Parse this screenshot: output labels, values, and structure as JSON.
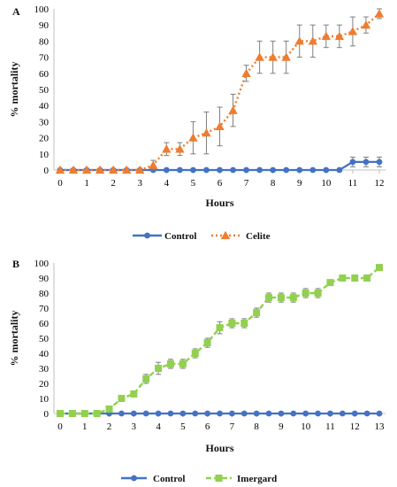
{
  "colors": {
    "control": "#4472C4",
    "celite": "#ED7D31",
    "imergard": "#92D050",
    "error": "#7f7f7f",
    "axis": "#bfbfbf"
  },
  "chart_data": [
    {
      "panel_label": "A",
      "type": "line",
      "xlabel": "Hours",
      "ylabel": "% mortality",
      "xlim": [
        0,
        12
      ],
      "ylim": [
        0,
        100
      ],
      "x_ticks": [
        "0",
        "1",
        "2",
        "3",
        "4",
        "5",
        "6",
        "7",
        "8",
        "9",
        "10",
        "11",
        "12"
      ],
      "y_ticks": [
        "0",
        "10",
        "20",
        "30",
        "40",
        "50",
        "60",
        "70",
        "80",
        "90",
        "100"
      ],
      "legend_position": "bottom",
      "series": [
        {
          "name": "Control",
          "marker": "circle",
          "line": "solid",
          "x": [
            0,
            0.5,
            1,
            1.5,
            2,
            2.5,
            3,
            3.5,
            4,
            4.5,
            5,
            5.5,
            6,
            6.5,
            7,
            7.5,
            8,
            8.5,
            9,
            9.5,
            10,
            10.5,
            11,
            11.5,
            12
          ],
          "values": [
            0,
            0,
            0,
            0,
            0,
            0,
            0,
            0,
            0,
            0,
            0,
            0,
            0,
            0,
            0,
            0,
            0,
            0,
            0,
            0,
            0,
            0,
            5,
            5,
            5
          ],
          "errors": [
            0,
            0,
            0,
            0,
            0,
            0,
            0,
            0,
            0,
            0,
            0,
            0,
            0,
            0,
            0,
            0,
            0,
            0,
            0,
            0,
            0,
            0,
            3,
            3,
            3
          ]
        },
        {
          "name": "Celite",
          "marker": "triangle",
          "line": "dotted",
          "x": [
            0,
            0.5,
            1,
            1.5,
            2,
            2.5,
            3,
            3.5,
            4,
            4.5,
            5,
            5.5,
            6,
            6.5,
            7,
            7.5,
            8,
            8.5,
            9,
            9.5,
            10,
            10.5,
            11,
            11.5,
            12
          ],
          "values": [
            0,
            0,
            0,
            0,
            0,
            0,
            0,
            3,
            13,
            13,
            20,
            23,
            27,
            37,
            60,
            70,
            70,
            70,
            80,
            80,
            83,
            83,
            86,
            90,
            97
          ],
          "errors": [
            0,
            0,
            0,
            0,
            0,
            0,
            0,
            3,
            4,
            4,
            10,
            13,
            12,
            10,
            5,
            10,
            10,
            10,
            10,
            10,
            7,
            7,
            9,
            5,
            3
          ]
        }
      ]
    },
    {
      "panel_label": "B",
      "type": "line",
      "xlabel": "Hours",
      "ylabel": "% mortality",
      "xlim": [
        0,
        13
      ],
      "ylim": [
        0,
        100
      ],
      "x_ticks": [
        "0",
        "1",
        "2",
        "3",
        "4",
        "5",
        "6",
        "7",
        "8",
        "9",
        "10",
        "11",
        "12",
        "13"
      ],
      "y_ticks": [
        "0",
        "10",
        "20",
        "30",
        "40",
        "50",
        "60",
        "70",
        "80",
        "90",
        "100"
      ],
      "legend_position": "bottom",
      "series": [
        {
          "name": "Control",
          "marker": "circle",
          "line": "solid",
          "x": [
            0,
            0.5,
            1,
            1.5,
            2,
            2.5,
            3,
            3.5,
            4,
            4.5,
            5,
            5.5,
            6,
            6.5,
            7,
            7.5,
            8,
            8.5,
            9,
            9.5,
            10,
            10.5,
            11,
            11.5,
            12,
            12.5,
            13
          ],
          "values": [
            0,
            0,
            0,
            0,
            0,
            0,
            0,
            0,
            0,
            0,
            0,
            0,
            0,
            0,
            0,
            0,
            0,
            0,
            0,
            0,
            0,
            0,
            0,
            0,
            0,
            0,
            0
          ],
          "errors": [
            0,
            0,
            0,
            0,
            0,
            0,
            0,
            0,
            0,
            0,
            0,
            0,
            0,
            0,
            0,
            0,
            0,
            0,
            0,
            0,
            0,
            0,
            0,
            0,
            0,
            0,
            0
          ]
        },
        {
          "name": "Imergard",
          "marker": "square",
          "line": "dashed",
          "x": [
            0,
            0.5,
            1,
            1.5,
            2,
            2.5,
            3,
            3.5,
            4,
            4.5,
            5,
            5.5,
            6,
            6.5,
            7,
            7.5,
            8,
            8.5,
            9,
            9.5,
            10,
            10.5,
            11,
            11.5,
            12,
            12.5,
            13
          ],
          "values": [
            0,
            0,
            0,
            0,
            3,
            10,
            13,
            23,
            30,
            33,
            33,
            40,
            47,
            57,
            60,
            60,
            67,
            77,
            77,
            77,
            80,
            80,
            87,
            90,
            90,
            90,
            97
          ],
          "errors": [
            0,
            0,
            0,
            0,
            0,
            0,
            0,
            3,
            4,
            3,
            3,
            3,
            3,
            4,
            3,
            3,
            3,
            3,
            3,
            3,
            3,
            3,
            0,
            0,
            0,
            0,
            0
          ]
        }
      ]
    }
  ]
}
